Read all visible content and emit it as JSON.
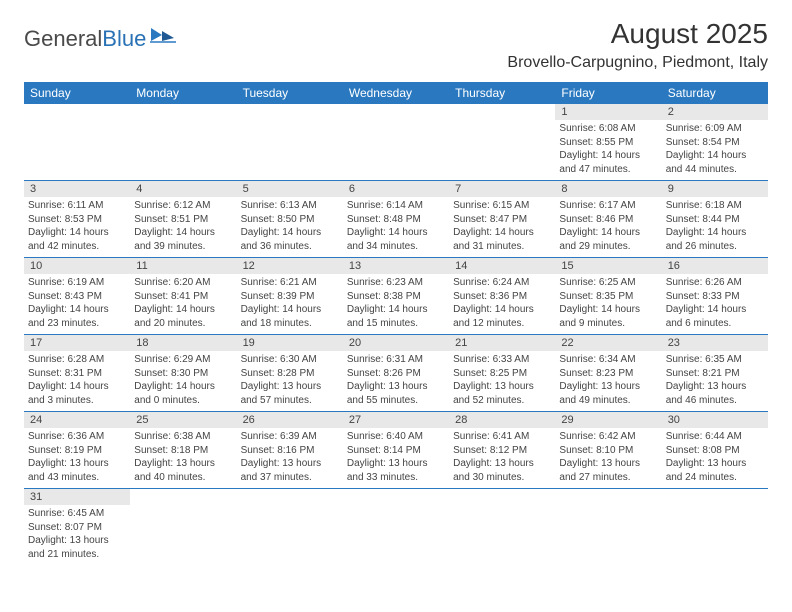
{
  "logo": {
    "text_part1": "General",
    "text_part2": "Blue",
    "icon_color": "#2a79c0"
  },
  "header": {
    "month_title": "August 2025",
    "location": "Brovello-Carpugnino, Piedmont, Italy"
  },
  "colors": {
    "header_bg": "#2a79c0",
    "header_text": "#ffffff",
    "daynum_bg": "#e8e8e8",
    "row_border": "#2a79c0",
    "body_text": "#444444"
  },
  "day_labels": [
    "Sunday",
    "Monday",
    "Tuesday",
    "Wednesday",
    "Thursday",
    "Friday",
    "Saturday"
  ],
  "weeks": [
    [
      null,
      null,
      null,
      null,
      null,
      {
        "n": "1",
        "sr": "Sunrise: 6:08 AM",
        "ss": "Sunset: 8:55 PM",
        "d1": "Daylight: 14 hours",
        "d2": "and 47 minutes."
      },
      {
        "n": "2",
        "sr": "Sunrise: 6:09 AM",
        "ss": "Sunset: 8:54 PM",
        "d1": "Daylight: 14 hours",
        "d2": "and 44 minutes."
      }
    ],
    [
      {
        "n": "3",
        "sr": "Sunrise: 6:11 AM",
        "ss": "Sunset: 8:53 PM",
        "d1": "Daylight: 14 hours",
        "d2": "and 42 minutes."
      },
      {
        "n": "4",
        "sr": "Sunrise: 6:12 AM",
        "ss": "Sunset: 8:51 PM",
        "d1": "Daylight: 14 hours",
        "d2": "and 39 minutes."
      },
      {
        "n": "5",
        "sr": "Sunrise: 6:13 AM",
        "ss": "Sunset: 8:50 PM",
        "d1": "Daylight: 14 hours",
        "d2": "and 36 minutes."
      },
      {
        "n": "6",
        "sr": "Sunrise: 6:14 AM",
        "ss": "Sunset: 8:48 PM",
        "d1": "Daylight: 14 hours",
        "d2": "and 34 minutes."
      },
      {
        "n": "7",
        "sr": "Sunrise: 6:15 AM",
        "ss": "Sunset: 8:47 PM",
        "d1": "Daylight: 14 hours",
        "d2": "and 31 minutes."
      },
      {
        "n": "8",
        "sr": "Sunrise: 6:17 AM",
        "ss": "Sunset: 8:46 PM",
        "d1": "Daylight: 14 hours",
        "d2": "and 29 minutes."
      },
      {
        "n": "9",
        "sr": "Sunrise: 6:18 AM",
        "ss": "Sunset: 8:44 PM",
        "d1": "Daylight: 14 hours",
        "d2": "and 26 minutes."
      }
    ],
    [
      {
        "n": "10",
        "sr": "Sunrise: 6:19 AM",
        "ss": "Sunset: 8:43 PM",
        "d1": "Daylight: 14 hours",
        "d2": "and 23 minutes."
      },
      {
        "n": "11",
        "sr": "Sunrise: 6:20 AM",
        "ss": "Sunset: 8:41 PM",
        "d1": "Daylight: 14 hours",
        "d2": "and 20 minutes."
      },
      {
        "n": "12",
        "sr": "Sunrise: 6:21 AM",
        "ss": "Sunset: 8:39 PM",
        "d1": "Daylight: 14 hours",
        "d2": "and 18 minutes."
      },
      {
        "n": "13",
        "sr": "Sunrise: 6:23 AM",
        "ss": "Sunset: 8:38 PM",
        "d1": "Daylight: 14 hours",
        "d2": "and 15 minutes."
      },
      {
        "n": "14",
        "sr": "Sunrise: 6:24 AM",
        "ss": "Sunset: 8:36 PM",
        "d1": "Daylight: 14 hours",
        "d2": "and 12 minutes."
      },
      {
        "n": "15",
        "sr": "Sunrise: 6:25 AM",
        "ss": "Sunset: 8:35 PM",
        "d1": "Daylight: 14 hours",
        "d2": "and 9 minutes."
      },
      {
        "n": "16",
        "sr": "Sunrise: 6:26 AM",
        "ss": "Sunset: 8:33 PM",
        "d1": "Daylight: 14 hours",
        "d2": "and 6 minutes."
      }
    ],
    [
      {
        "n": "17",
        "sr": "Sunrise: 6:28 AM",
        "ss": "Sunset: 8:31 PM",
        "d1": "Daylight: 14 hours",
        "d2": "and 3 minutes."
      },
      {
        "n": "18",
        "sr": "Sunrise: 6:29 AM",
        "ss": "Sunset: 8:30 PM",
        "d1": "Daylight: 14 hours",
        "d2": "and 0 minutes."
      },
      {
        "n": "19",
        "sr": "Sunrise: 6:30 AM",
        "ss": "Sunset: 8:28 PM",
        "d1": "Daylight: 13 hours",
        "d2": "and 57 minutes."
      },
      {
        "n": "20",
        "sr": "Sunrise: 6:31 AM",
        "ss": "Sunset: 8:26 PM",
        "d1": "Daylight: 13 hours",
        "d2": "and 55 minutes."
      },
      {
        "n": "21",
        "sr": "Sunrise: 6:33 AM",
        "ss": "Sunset: 8:25 PM",
        "d1": "Daylight: 13 hours",
        "d2": "and 52 minutes."
      },
      {
        "n": "22",
        "sr": "Sunrise: 6:34 AM",
        "ss": "Sunset: 8:23 PM",
        "d1": "Daylight: 13 hours",
        "d2": "and 49 minutes."
      },
      {
        "n": "23",
        "sr": "Sunrise: 6:35 AM",
        "ss": "Sunset: 8:21 PM",
        "d1": "Daylight: 13 hours",
        "d2": "and 46 minutes."
      }
    ],
    [
      {
        "n": "24",
        "sr": "Sunrise: 6:36 AM",
        "ss": "Sunset: 8:19 PM",
        "d1": "Daylight: 13 hours",
        "d2": "and 43 minutes."
      },
      {
        "n": "25",
        "sr": "Sunrise: 6:38 AM",
        "ss": "Sunset: 8:18 PM",
        "d1": "Daylight: 13 hours",
        "d2": "and 40 minutes."
      },
      {
        "n": "26",
        "sr": "Sunrise: 6:39 AM",
        "ss": "Sunset: 8:16 PM",
        "d1": "Daylight: 13 hours",
        "d2": "and 37 minutes."
      },
      {
        "n": "27",
        "sr": "Sunrise: 6:40 AM",
        "ss": "Sunset: 8:14 PM",
        "d1": "Daylight: 13 hours",
        "d2": "and 33 minutes."
      },
      {
        "n": "28",
        "sr": "Sunrise: 6:41 AM",
        "ss": "Sunset: 8:12 PM",
        "d1": "Daylight: 13 hours",
        "d2": "and 30 minutes."
      },
      {
        "n": "29",
        "sr": "Sunrise: 6:42 AM",
        "ss": "Sunset: 8:10 PM",
        "d1": "Daylight: 13 hours",
        "d2": "and 27 minutes."
      },
      {
        "n": "30",
        "sr": "Sunrise: 6:44 AM",
        "ss": "Sunset: 8:08 PM",
        "d1": "Daylight: 13 hours",
        "d2": "and 24 minutes."
      }
    ],
    [
      {
        "n": "31",
        "sr": "Sunrise: 6:45 AM",
        "ss": "Sunset: 8:07 PM",
        "d1": "Daylight: 13 hours",
        "d2": "and 21 minutes."
      },
      null,
      null,
      null,
      null,
      null,
      null
    ]
  ]
}
